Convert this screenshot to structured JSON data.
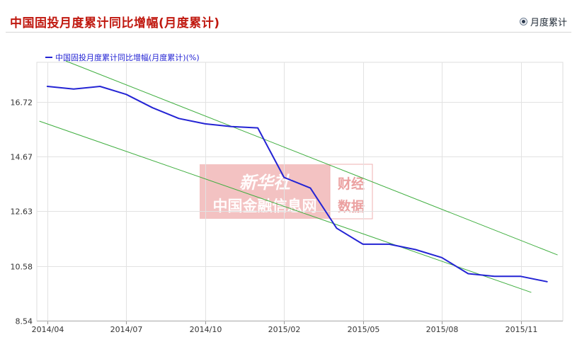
{
  "page": {
    "title": "中国固投月度累计同比增幅(月度累计)",
    "radio_label": "月度累计"
  },
  "watermark": {
    "brand": "新华社",
    "name": "中国金融信息网",
    "tag_line1": "财经",
    "tag_line2": "数据"
  },
  "chart_data": {
    "type": "line",
    "title": "中国固投月度累计同比增幅(月度累计)",
    "xlabel": "",
    "ylabel": "",
    "ylim": [
      8.54,
      18.2
    ],
    "y_ticks": [
      8.54,
      10.58,
      12.63,
      14.67,
      16.72
    ],
    "y_tick_labels": [
      "8.54",
      "10.58",
      "12.63",
      "14.67",
      "16.72"
    ],
    "x_ticks": [
      "2014/04",
      "2014/07",
      "2014/10",
      "2015/02",
      "2015/05",
      "2015/08",
      "2015/11"
    ],
    "x_tick_positions": [
      0,
      3,
      6,
      9,
      12,
      15,
      18
    ],
    "xlim": [
      -0.4,
      19.6
    ],
    "legend_position": "top-left",
    "grid": true,
    "series": [
      {
        "name": "中国固投月度累计同比增幅(月度累计)(%)",
        "color": "#2424d4",
        "x": [
          0,
          1,
          2,
          3,
          4,
          5,
          6,
          7,
          8,
          9,
          10,
          11,
          12,
          13,
          14,
          15,
          16,
          17,
          18,
          19
        ],
        "values": [
          17.3,
          17.2,
          17.3,
          17.0,
          16.5,
          16.1,
          15.9,
          15.8,
          15.75,
          13.9,
          13.5,
          12.0,
          11.4,
          11.4,
          11.2,
          10.9,
          10.3,
          10.2,
          10.2,
          10.0
        ]
      }
    ],
    "trend_lines": [
      {
        "name": "upper-trendline",
        "color": "#3fae3f",
        "x": [
          0.7,
          19.4
        ],
        "values": [
          18.25,
          11.0
        ]
      },
      {
        "name": "lower-trendline",
        "color": "#3fae3f",
        "x": [
          -0.3,
          18.4
        ],
        "values": [
          16.0,
          9.6
        ]
      }
    ]
  }
}
